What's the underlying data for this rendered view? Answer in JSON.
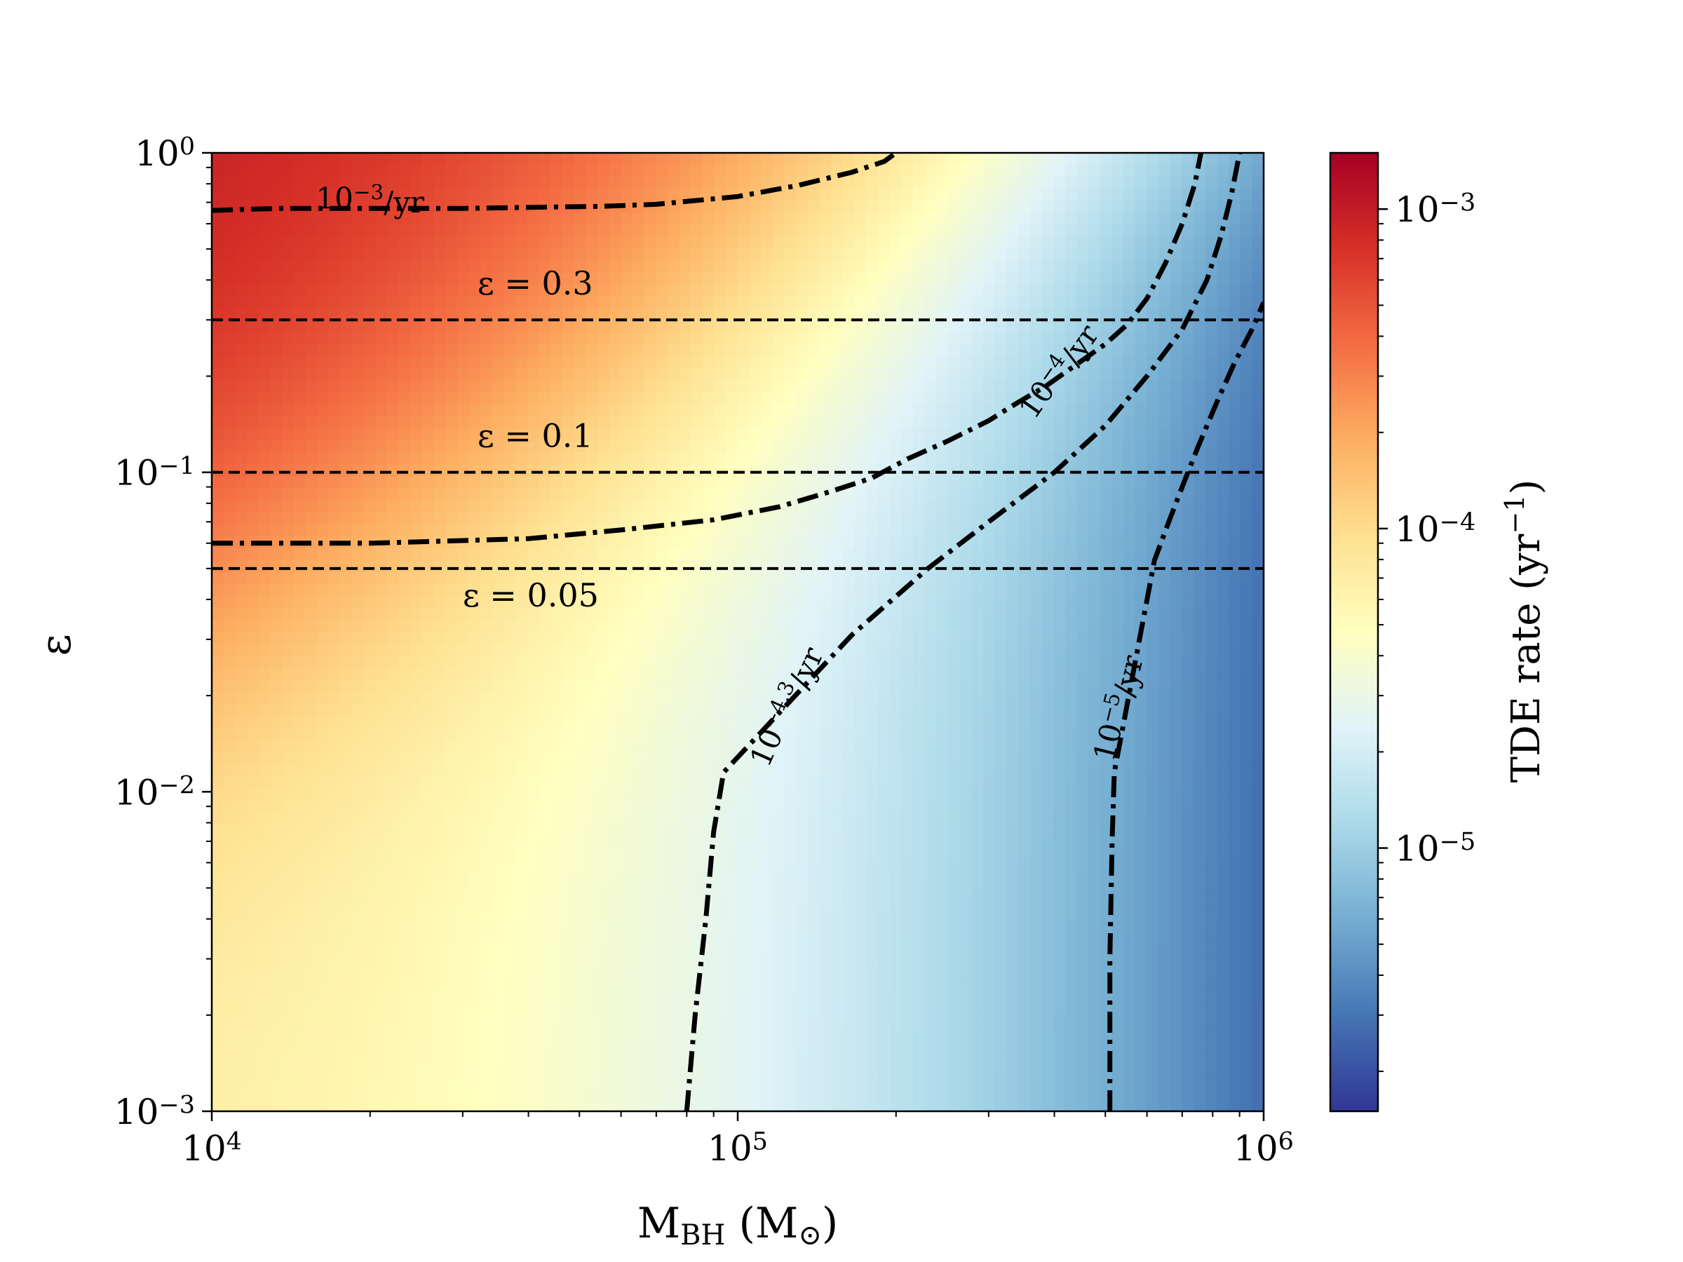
{
  "chart_data": {
    "type": "heatmap",
    "xlabel": {
      "base": "M",
      "sub": "BH",
      "rest": " (M",
      "sub2": "⊙",
      "close": ")"
    },
    "ylabel": "ε",
    "x_scale": "log",
    "y_scale": "log",
    "xlim": [
      10000,
      1000000
    ],
    "ylim": [
      0.001,
      1
    ],
    "x_ticks": [
      {
        "value": 10000,
        "base": "10",
        "exp": "4"
      },
      {
        "value": 100000,
        "base": "10",
        "exp": "5"
      },
      {
        "value": 1000000,
        "base": "10",
        "exp": "6"
      }
    ],
    "y_ticks": [
      {
        "value": 0.001,
        "base": "10",
        "exp": "−3"
      },
      {
        "value": 0.01,
        "base": "10",
        "exp": "−2"
      },
      {
        "value": 0.1,
        "base": "10",
        "exp": "−1"
      },
      {
        "value": 1,
        "base": "10",
        "exp": "0"
      }
    ],
    "colorbar": {
      "label_main": "TDE rate (yr",
      "label_exp": "−1",
      "label_close": ")",
      "scale": "log",
      "range": [
        1.5e-06,
        0.0015
      ],
      "colormap": "RdYlBu_r",
      "stops": [
        "#313695",
        "#4575b4",
        "#74add1",
        "#abd9e9",
        "#e0f3f8",
        "#ffffbf",
        "#fee090",
        "#fdae61",
        "#f46d43",
        "#d73027",
        "#a50026"
      ],
      "ticks": [
        {
          "value": 1e-05,
          "base": "10",
          "exp": "−5"
        },
        {
          "value": 0.0001,
          "base": "10",
          "exp": "−4"
        },
        {
          "value": 0.001,
          "base": "10",
          "exp": "−3"
        }
      ]
    },
    "horizontal_lines": [
      {
        "y": 0.3,
        "label_pre": "ε = ",
        "label_val": "0.3",
        "label_x": 32000,
        "label_y": 0.36
      },
      {
        "y": 0.1,
        "label_pre": "ε = ",
        "label_val": "0.1",
        "label_x": 32000,
        "label_y": 0.12
      },
      {
        "y": 0.05,
        "label_pre": "ε = ",
        "label_val": "0.05",
        "label_x": 30000,
        "label_y": 0.038
      }
    ],
    "contours": [
      {
        "level": 0.001,
        "label_base": "10",
        "label_exp": "−3",
        "label_unit": "/yr",
        "label_x": 20000,
        "label_y": 0.67,
        "label_angle": 0,
        "points": [
          [
            10000,
            0.66
          ],
          [
            11500,
            0.665
          ],
          [
            13500,
            0.67
          ],
          [
            15000,
            0.67
          ],
          [
            30000,
            0.67
          ],
          [
            40000,
            0.675
          ],
          [
            55000,
            0.68
          ],
          [
            70000,
            0.69
          ],
          [
            100000,
            0.73
          ],
          [
            130000,
            0.79
          ],
          [
            165000,
            0.87
          ],
          [
            190000,
            0.94
          ],
          [
            200000,
            1.0
          ]
        ]
      },
      {
        "level": 0.0001,
        "label_base": "10",
        "label_exp": "−4",
        "label_unit": "/yr",
        "label_x": 420000,
        "label_y": 0.2,
        "label_angle": -55,
        "points": [
          [
            10000,
            0.06
          ],
          [
            20000,
            0.06
          ],
          [
            40000,
            0.062
          ],
          [
            60000,
            0.066
          ],
          [
            90000,
            0.071
          ],
          [
            120000,
            0.078
          ],
          [
            150000,
            0.087
          ],
          [
            180000,
            0.096
          ],
          [
            210000,
            0.11
          ],
          [
            250000,
            0.125
          ],
          [
            300000,
            0.145
          ],
          [
            340000,
            0.165
          ],
          [
            385000,
            0.186
          ],
          [
            500000,
            0.252
          ],
          [
            550000,
            0.29
          ],
          [
            600000,
            0.35
          ],
          [
            650000,
            0.45
          ],
          [
            700000,
            0.6
          ],
          [
            740000,
            0.8
          ],
          [
            760000,
            1.0
          ]
        ]
      },
      {
        "level": 5e-05,
        "label_base": "10",
        "label_exp": "−4.3",
        "label_unit": "/yr",
        "label_x": 128000,
        "label_y": 0.018,
        "label_angle": -66,
        "points": [
          [
            80000,
            0.001
          ],
          [
            83000,
            0.002
          ],
          [
            87000,
            0.004
          ],
          [
            90000,
            0.0075
          ],
          [
            94000,
            0.0115
          ],
          [
            165000,
            0.031
          ],
          [
            190000,
            0.038
          ],
          [
            230000,
            0.05
          ],
          [
            300000,
            0.07
          ],
          [
            400000,
            0.1
          ],
          [
            500000,
            0.14
          ],
          [
            600000,
            0.2
          ],
          [
            700000,
            0.28
          ],
          [
            780000,
            0.4
          ],
          [
            830000,
            0.55
          ],
          [
            870000,
            0.75
          ],
          [
            900000,
            1.0
          ]
        ]
      },
      {
        "level": 1e-05,
        "label_base": "10",
        "label_exp": "−5",
        "label_unit": "/yr",
        "label_x": 548000,
        "label_y": 0.018,
        "label_angle": -76,
        "points": [
          [
            510000,
            0.001
          ],
          [
            510000,
            0.003
          ],
          [
            515000,
            0.007
          ],
          [
            520000,
            0.0115
          ],
          [
            620000,
            0.053
          ],
          [
            660000,
            0.07
          ],
          [
            700000,
            0.09
          ],
          [
            750000,
            0.12
          ],
          [
            820000,
            0.17
          ],
          [
            880000,
            0.22
          ],
          [
            950000,
            0.28
          ],
          [
            1000000,
            0.34
          ]
        ]
      }
    ],
    "heatmap_model": "rate(M, eps) approximated from displayed color field"
  }
}
